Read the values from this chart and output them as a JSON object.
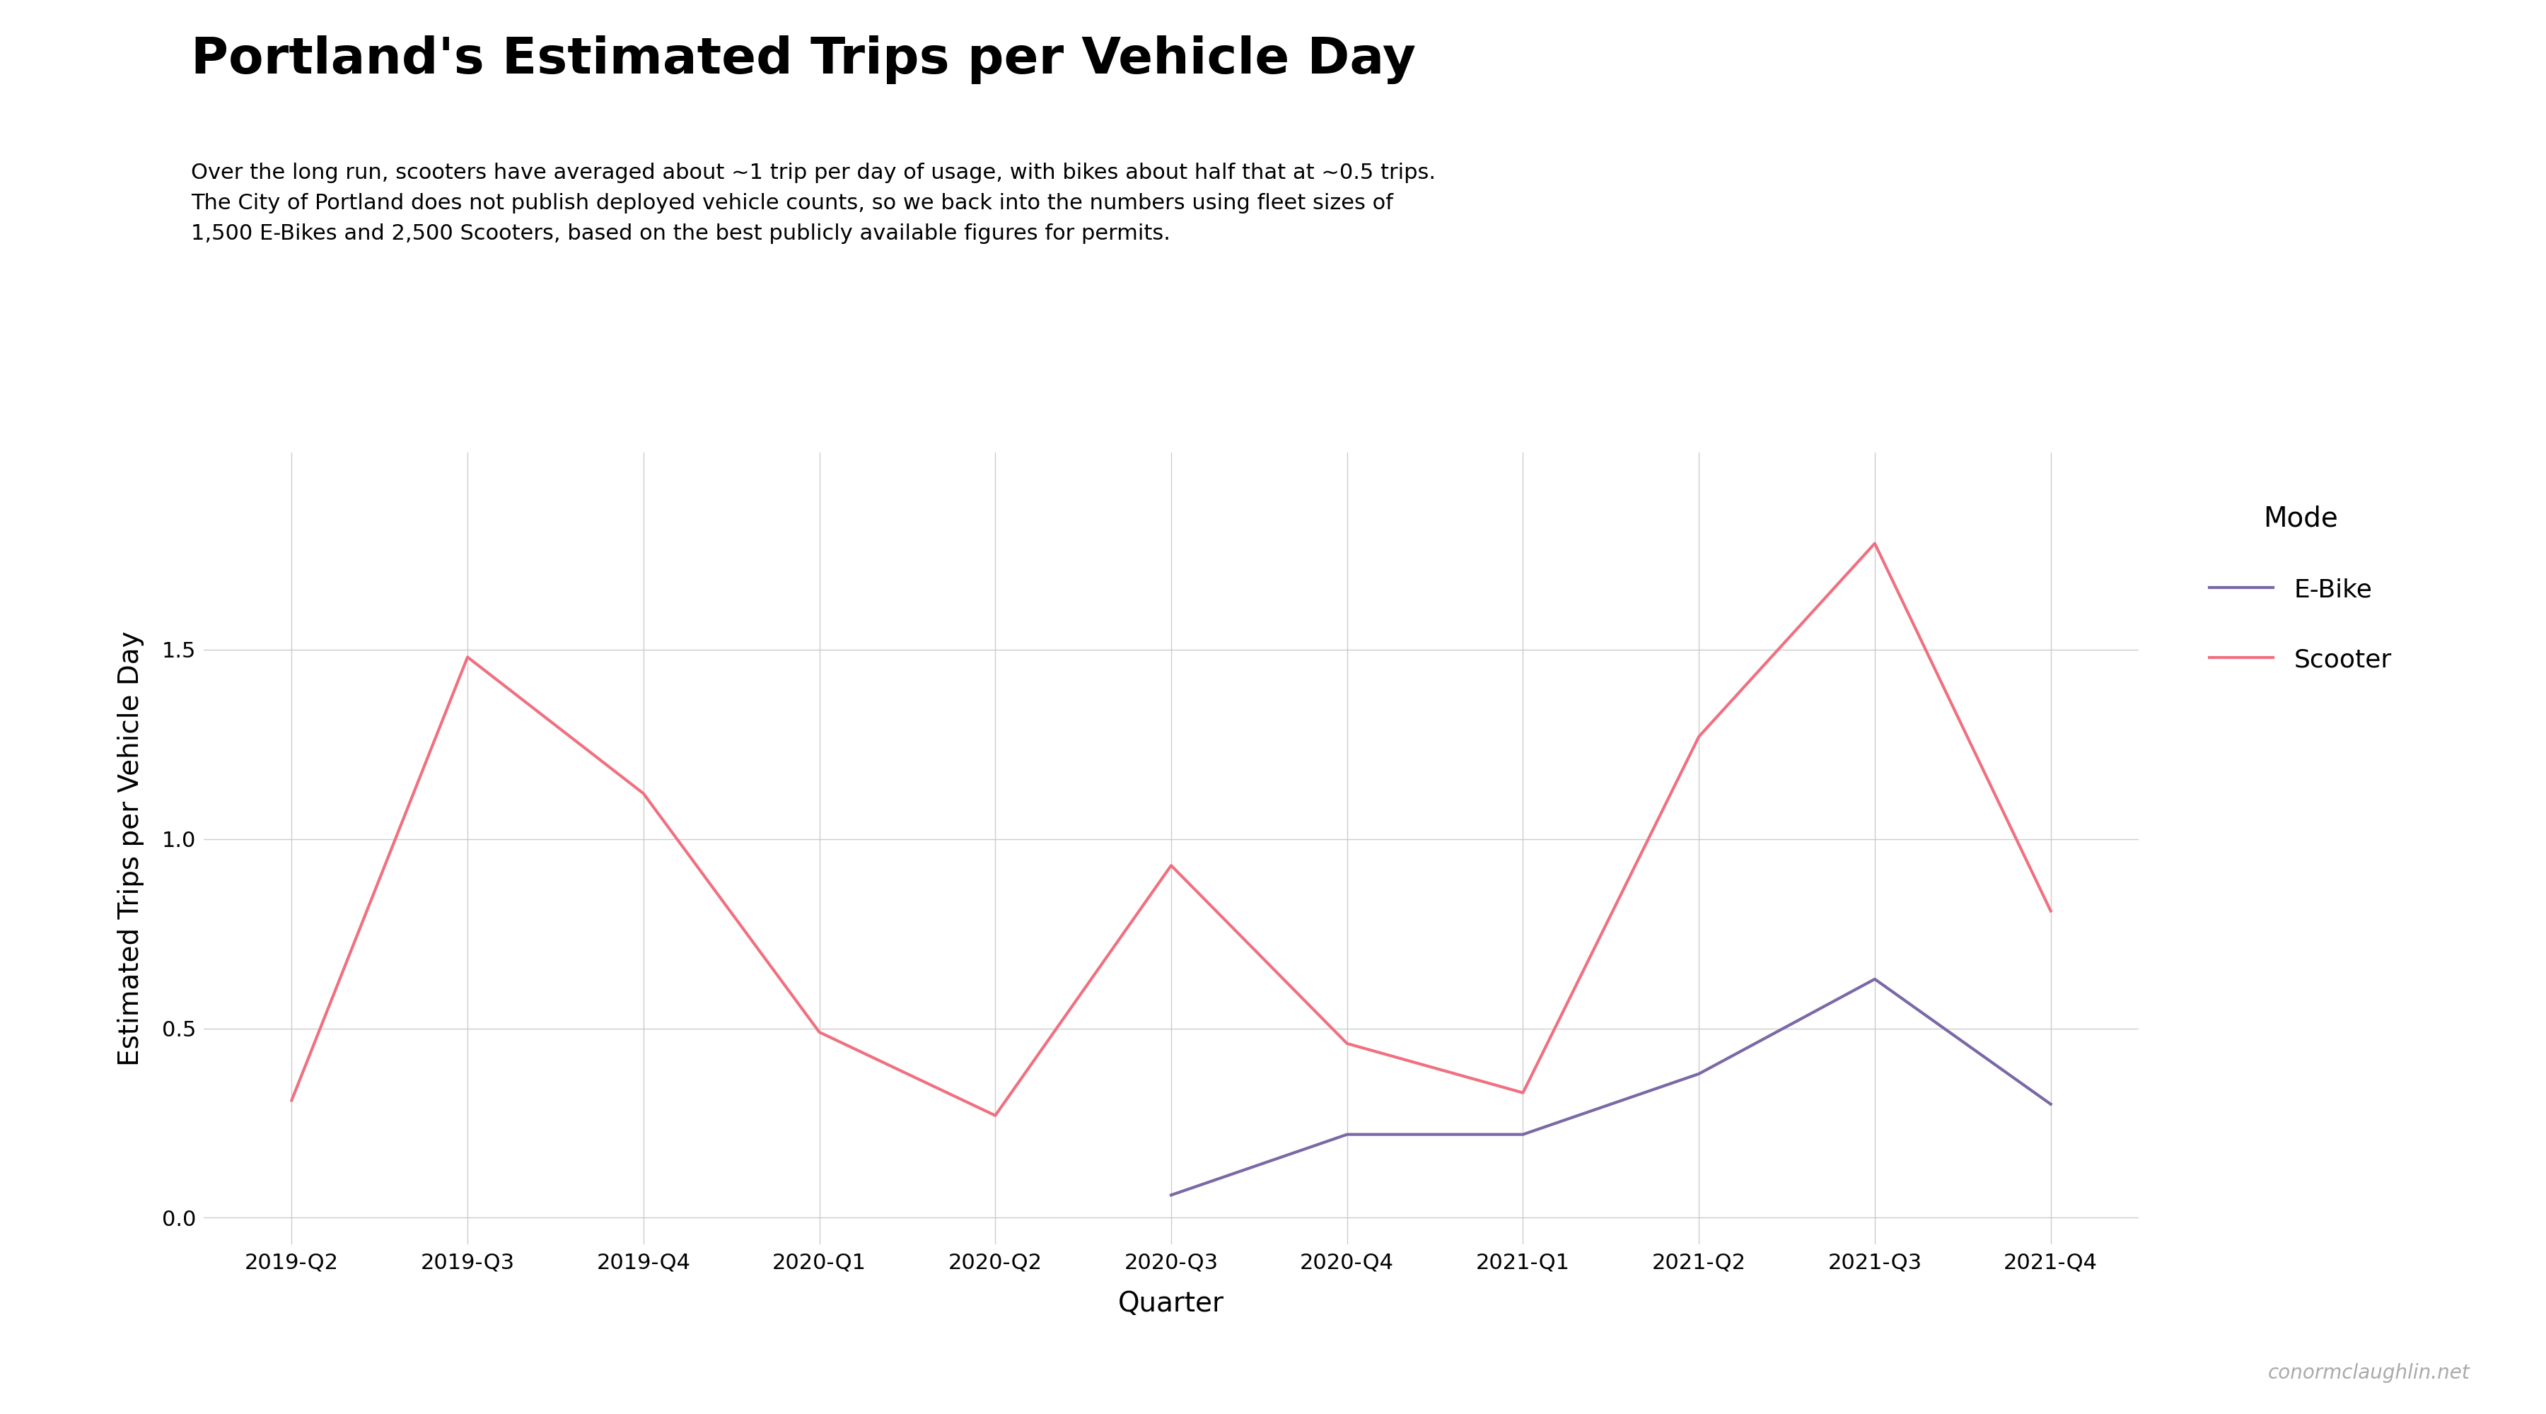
{
  "title": "Portland's Estimated Trips per Vehicle Day",
  "subtitle": "Over the long run, scooters have averaged about ~1 trip per day of usage, with bikes about half that at ~0.5 trips.\nThe City of Portland does not publish deployed vehicle counts, so we back into the numbers using fleet sizes of\n1,500 E-Bikes and 2,500 Scooters, based on the best publicly available figures for permits.",
  "xlabel": "Quarter",
  "ylabel": "Estimated Trips per Vehicle Day",
  "quarters": [
    "2019-Q2",
    "2019-Q3",
    "2019-Q4",
    "2020-Q1",
    "2020-Q2",
    "2020-Q3",
    "2020-Q4",
    "2021-Q1",
    "2021-Q2",
    "2021-Q3",
    "2021-Q4"
  ],
  "ebike_values": [
    null,
    null,
    null,
    null,
    null,
    0.06,
    0.22,
    0.22,
    0.38,
    0.63,
    0.3
  ],
  "scooter_values": [
    0.31,
    1.48,
    1.12,
    0.49,
    0.27,
    0.93,
    0.46,
    0.33,
    1.27,
    1.78,
    0.81
  ],
  "ebike_color": "#7B68A6",
  "scooter_color": "#F07080",
  "legend_title": "Mode",
  "legend_ebike": "E-Bike",
  "legend_scooter": "Scooter",
  "watermark": "conormclaughlin.net",
  "watermark_color": "#aaaaaa",
  "background_color": "#ffffff",
  "grid_color": "#cccccc",
  "ylim": [
    -0.07,
    2.02
  ],
  "yticks": [
    0.0,
    0.5,
    1.0,
    1.5
  ],
  "title_fontsize": 52,
  "subtitle_fontsize": 22,
  "axis_label_fontsize": 28,
  "tick_fontsize": 22,
  "legend_fontsize": 26,
  "legend_title_fontsize": 28,
  "watermark_fontsize": 20,
  "line_width": 3.0
}
